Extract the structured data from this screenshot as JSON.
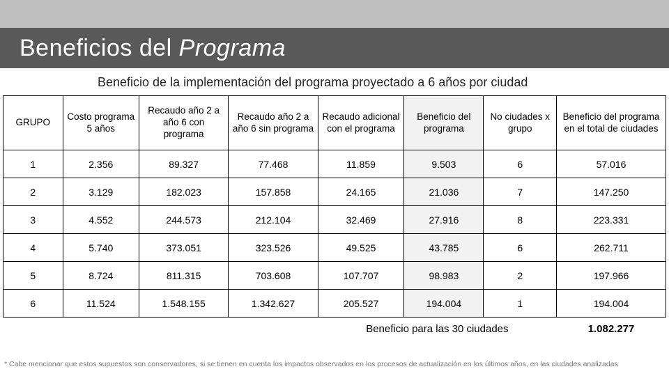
{
  "title_plain": "Beneficios del ",
  "title_italic": "Programa",
  "subtitle": "Beneficio de la implementación del programa proyectado a 6 años por ciudad",
  "table": {
    "columns": [
      "GRUPO",
      "Costo programa 5 años",
      "Recaudo año 2 a año 6 con programa",
      "Recaudo año 2 a año 6 sin programa",
      "Recaudo adicional con el programa",
      "Beneficio del programa",
      "No ciudades x grupo",
      "Beneficio del programa en el total de ciudades"
    ],
    "shaded_column_index": 5,
    "rows": [
      [
        "1",
        "2.356",
        "89.327",
        "77.468",
        "11.859",
        "9.503",
        "6",
        "57.016"
      ],
      [
        "2",
        "3.129",
        "182.023",
        "157.858",
        "24.165",
        "21.036",
        "7",
        "147.250"
      ],
      [
        "3",
        "4.552",
        "244.573",
        "212.104",
        "32.469",
        "27.916",
        "8",
        "223.331"
      ],
      [
        "4",
        "5.740",
        "373.051",
        "323.526",
        "49.525",
        "43.785",
        "6",
        "262.711"
      ],
      [
        "5",
        "8.724",
        "811.315",
        "703.608",
        "107.707",
        "98.983",
        "2",
        "197.966"
      ],
      [
        "6",
        "11.524",
        "1.548.155",
        "1.342.627",
        "205.527",
        "194.004",
        "1",
        "194.004"
      ]
    ],
    "footer_label": "Beneficio para las 30 ciudades",
    "footer_value": "1.082.277"
  },
  "footnote": "* Cabe mencionar que estos supuestos son conservadores, si se tienen en cuenta los impactos observados en los procesos de actualización en los últimos años, en las ciudades analizadas",
  "colors": {
    "top_bar": "#bfbfbf",
    "title_band": "#595959",
    "shade": "#f2f2f2",
    "border": "#000000",
    "footnote": "#7a7a7a"
  }
}
